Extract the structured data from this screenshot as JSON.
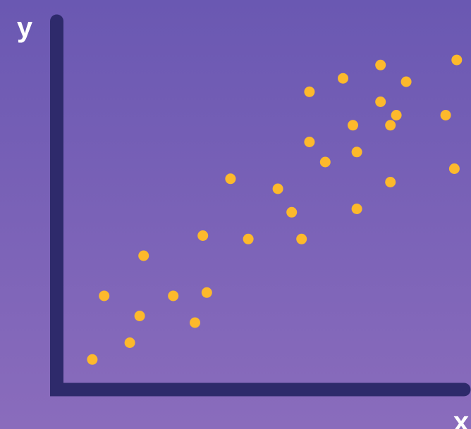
{
  "chart_data": {
    "type": "scatter",
    "xlabel": "x",
    "ylabel": "y",
    "xlim": [
      0,
      10
    ],
    "ylim": [
      0,
      10
    ],
    "grid": false,
    "point_color": "#fdb92c",
    "axis_color": "#2e2a6b",
    "points": [
      {
        "x": 0.9,
        "y": 0.9
      },
      {
        "x": 1.2,
        "y": 2.8
      },
      {
        "x": 1.85,
        "y": 1.4
      },
      {
        "x": 2.1,
        "y": 2.2
      },
      {
        "x": 2.2,
        "y": 4.0
      },
      {
        "x": 2.95,
        "y": 2.8
      },
      {
        "x": 3.5,
        "y": 2.0
      },
      {
        "x": 3.7,
        "y": 4.6
      },
      {
        "x": 3.8,
        "y": 2.9
      },
      {
        "x": 4.4,
        "y": 6.3
      },
      {
        "x": 4.85,
        "y": 4.5
      },
      {
        "x": 5.6,
        "y": 6.0
      },
      {
        "x": 5.95,
        "y": 5.3
      },
      {
        "x": 6.2,
        "y": 4.5
      },
      {
        "x": 6.4,
        "y": 7.4
      },
      {
        "x": 6.4,
        "y": 8.9
      },
      {
        "x": 6.8,
        "y": 6.8
      },
      {
        "x": 7.25,
        "y": 9.3
      },
      {
        "x": 7.5,
        "y": 7.9
      },
      {
        "x": 7.6,
        "y": 5.4
      },
      {
        "x": 7.6,
        "y": 7.1
      },
      {
        "x": 8.2,
        "y": 8.6
      },
      {
        "x": 8.2,
        "y": 9.7
      },
      {
        "x": 8.45,
        "y": 7.9
      },
      {
        "x": 8.45,
        "y": 6.2
      },
      {
        "x": 8.6,
        "y": 8.2
      },
      {
        "x": 8.85,
        "y": 9.2
      },
      {
        "x": 9.85,
        "y": 8.2
      },
      {
        "x": 10.07,
        "y": 6.6
      },
      {
        "x": 10.13,
        "y": 9.85
      }
    ]
  }
}
